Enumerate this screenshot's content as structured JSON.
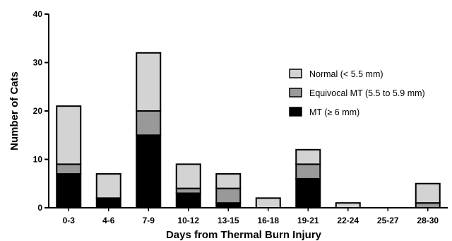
{
  "chart_data": {
    "type": "bar",
    "stacked": true,
    "title": "",
    "xlabel": "Days from Thermal Burn Injury",
    "ylabel": "Number of Cats",
    "ylim": [
      0,
      40
    ],
    "yticks": [
      "0",
      "10",
      "20",
      "30",
      "40"
    ],
    "grid": false,
    "legend_position": "right",
    "categories": [
      "0-3",
      "4-6",
      "7-9",
      "10-12",
      "13-15",
      "16-18",
      "19-21",
      "22-24",
      "25-27",
      "28-30"
    ],
    "series": [
      {
        "name": "MT (≥ 6 mm)",
        "color": "#000000",
        "values": [
          7,
          2,
          15,
          3,
          1,
          0,
          6,
          0,
          0,
          0
        ]
      },
      {
        "name": "Equivocal MT (5.5 to 5.9 mm)",
        "color": "#999999",
        "values": [
          2,
          0,
          5,
          1,
          3,
          0,
          3,
          0,
          0,
          1
        ]
      },
      {
        "name": "Normal (< 5.5 mm)",
        "color": "#d3d3d3",
        "values": [
          12,
          5,
          12,
          5,
          3,
          2,
          3,
          1,
          0,
          4
        ]
      }
    ],
    "legend_order": [
      2,
      1,
      0
    ]
  }
}
